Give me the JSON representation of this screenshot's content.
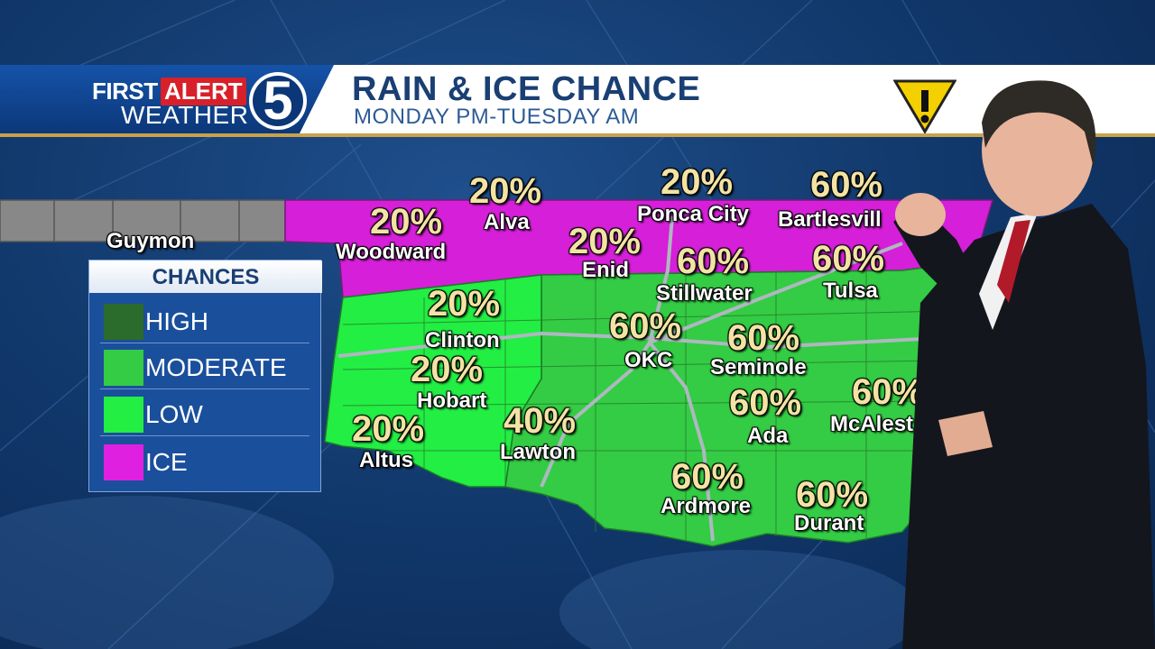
{
  "header": {
    "logo_first": "FIRST",
    "logo_alert": "ALERT",
    "logo_weather": "WEATHER",
    "logo_number": "5",
    "title": "RAIN & ICE CHANCE",
    "subtitle": "MONDAY PM-TUESDAY AM",
    "warning_icon": "warning-triangle-icon"
  },
  "legend": {
    "title": "CHANCES",
    "items": [
      {
        "label": "HIGH",
        "color": "#2b6b2b"
      },
      {
        "label": "MODERATE",
        "color": "#33cc44"
      },
      {
        "label": "LOW",
        "color": "#22ee44"
      },
      {
        "label": "ICE",
        "color": "#e020e0"
      }
    ]
  },
  "map": {
    "zones": {
      "ice": "#d61fd9",
      "moderate": "#33cc44",
      "low": "#22ee44",
      "panhandle": "#888888"
    },
    "cities": [
      {
        "name": "Guymon",
        "chance": ""
      },
      {
        "name": "Woodward",
        "chance": "20%"
      },
      {
        "name": "Alva",
        "chance": "20%"
      },
      {
        "name": "Enid",
        "chance": "20%"
      },
      {
        "name": "Ponca City",
        "chance": "20%"
      },
      {
        "name": "Bartlesvill",
        "chance": "60%"
      },
      {
        "name": "Stillwater",
        "chance": "60%"
      },
      {
        "name": "Tulsa",
        "chance": "60%"
      },
      {
        "name": "Clinton",
        "chance": "20%"
      },
      {
        "name": "OKC",
        "chance": "60%"
      },
      {
        "name": "Seminole",
        "chance": "60%"
      },
      {
        "name": "Hobart",
        "chance": "20%"
      },
      {
        "name": "Lawton",
        "chance": "40%"
      },
      {
        "name": "Altus",
        "chance": "20%"
      },
      {
        "name": "Ada",
        "chance": "60%"
      },
      {
        "name": "McAlest",
        "chance": "60%"
      },
      {
        "name": "Ardmore",
        "chance": "60%"
      },
      {
        "name": "Durant",
        "chance": "60%"
      }
    ]
  }
}
